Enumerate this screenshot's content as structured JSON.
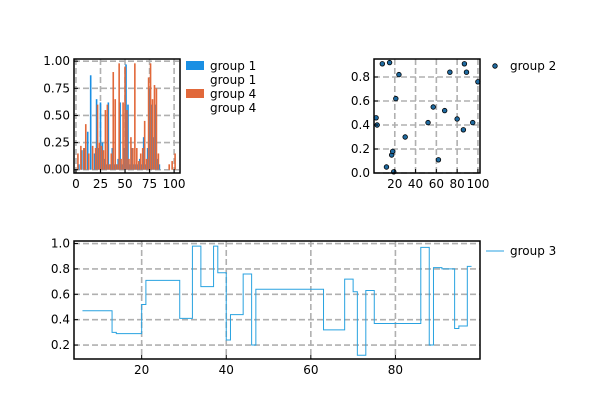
{
  "chart_data": [
    {
      "id": "hist",
      "type": "bar",
      "xlim": [
        -2,
        106
      ],
      "ylim": [
        -0.03,
        1.02
      ],
      "xticks": [
        0,
        25,
        50,
        75,
        100
      ],
      "yticks": [
        0.0,
        0.25,
        0.5,
        0.75,
        1.0
      ],
      "xtick_labels": [
        "0",
        "25",
        "50",
        "75",
        "100"
      ],
      "ytick_labels": [
        "0.00",
        "0.25",
        "0.50",
        "0.75",
        "1.00"
      ],
      "grid": true,
      "legend_position": "outside-right",
      "legend": [
        "group 1",
        "group 1",
        "group 4",
        "group 4"
      ],
      "series": [
        {
          "name": "group 1",
          "color": "#1a8fe3",
          "x": [
            3,
            6,
            9,
            12,
            15,
            19,
            21,
            23,
            25,
            27,
            29,
            31,
            33,
            35,
            37,
            39,
            41,
            43,
            45,
            47,
            49,
            51,
            53,
            55,
            57,
            59,
            61,
            63,
            65,
            67,
            69,
            71,
            73,
            75,
            77,
            79,
            81,
            83,
            85
          ],
          "values": [
            0.05,
            0.18,
            0.2,
            0.35,
            0.87,
            0.15,
            0.65,
            0.2,
            0.62,
            0.25,
            0.1,
            0.05,
            0.62,
            0.05,
            0.2,
            0.05,
            0.05,
            0.1,
            0.62,
            0.05,
            0.2,
            0.97,
            0.6,
            0.05,
            0.2,
            0.05,
            0.05,
            0.05,
            0.1,
            0.05,
            0.3,
            0.05,
            0.2,
            0.75,
            0.6,
            0.3,
            0.6,
            0.1,
            0.05
          ]
        },
        {
          "name": "group 4",
          "color": "#e1683a",
          "x": [
            2,
            5,
            8,
            10,
            13,
            17,
            20,
            22,
            24,
            26,
            28,
            30,
            32,
            34,
            36,
            38,
            40,
            42,
            44,
            46,
            48,
            50,
            52,
            54,
            56,
            58,
            60,
            62,
            64,
            66,
            68,
            70,
            72,
            74,
            76,
            78,
            80,
            82,
            84,
            95,
            98,
            101
          ],
          "values": [
            0.15,
            0.22,
            0.2,
            0.42,
            0.15,
            0.22,
            0.2,
            0.6,
            0.25,
            0.22,
            0.18,
            0.55,
            0.6,
            0.05,
            0.15,
            0.9,
            0.65,
            0.05,
            0.98,
            0.1,
            0.62,
            0.95,
            0.55,
            0.1,
            0.3,
            0.2,
            0.98,
            0.2,
            0.08,
            0.15,
            0.2,
            0.45,
            0.1,
            0.85,
            0.98,
            0.65,
            0.78,
            0.75,
            0.15,
            0.05,
            0.08,
            0.15
          ]
        }
      ]
    },
    {
      "id": "scatter",
      "type": "scatter",
      "xlim": [
        0,
        102
      ],
      "ylim": [
        0,
        0.95
      ],
      "xticks": [
        20,
        40,
        60,
        80,
        100
      ],
      "yticks": [
        0.0,
        0.2,
        0.4,
        0.6,
        0.8
      ],
      "xtick_labels": [
        "20",
        "40",
        "60",
        "80",
        "100"
      ],
      "ytick_labels": [
        "0.0",
        "0.2",
        "0.4",
        "0.6",
        "0.8"
      ],
      "grid": true,
      "legend_position": "outside-right",
      "legend": [
        "group 2"
      ],
      "series": [
        {
          "name": "group 2",
          "color": "#1f6aa0",
          "x": [
            2,
            3,
            8,
            12,
            15,
            17,
            18,
            19,
            21,
            24,
            30,
            52,
            57,
            62,
            68,
            73,
            80,
            86,
            87,
            89,
            95,
            100
          ],
          "y": [
            0.46,
            0.4,
            0.91,
            0.05,
            0.92,
            0.15,
            0.18,
            0.01,
            0.62,
            0.82,
            0.3,
            0.42,
            0.55,
            0.11,
            0.52,
            0.84,
            0.45,
            0.36,
            0.91,
            0.84,
            0.42,
            0.76
          ]
        }
      ]
    },
    {
      "id": "step",
      "type": "line",
      "xlim": [
        4,
        100
      ],
      "ylim": [
        0.09,
        1.02
      ],
      "xticks": [
        20,
        40,
        60,
        80
      ],
      "yticks": [
        0.2,
        0.4,
        0.6,
        0.8,
        1.0
      ],
      "xtick_labels": [
        "20",
        "40",
        "60",
        "80"
      ],
      "ytick_labels": [
        "0.2",
        "0.4",
        "0.6",
        "0.8",
        "1.0"
      ],
      "grid": true,
      "legend_position": "outside-right",
      "legend": [
        "group 3"
      ],
      "series": [
        {
          "name": "group 3",
          "color": "#29a2e0",
          "x": [
            6,
            13,
            14,
            19,
            20,
            21,
            29,
            32,
            34,
            37,
            38,
            40,
            41,
            44,
            46,
            47,
            63,
            68,
            70,
            71,
            73,
            75,
            76,
            86,
            88,
            89,
            91,
            94,
            95,
            97,
            98
          ],
          "y": [
            0.47,
            0.3,
            0.29,
            0.29,
            0.52,
            0.71,
            0.41,
            0.98,
            0.66,
            0.98,
            0.77,
            0.24,
            0.44,
            0.76,
            0.2,
            0.64,
            0.32,
            0.72,
            0.62,
            0.12,
            0.63,
            0.37,
            0.37,
            0.97,
            0.2,
            0.81,
            0.8,
            0.33,
            0.35,
            0.82,
            0.82
          ]
        }
      ]
    }
  ]
}
